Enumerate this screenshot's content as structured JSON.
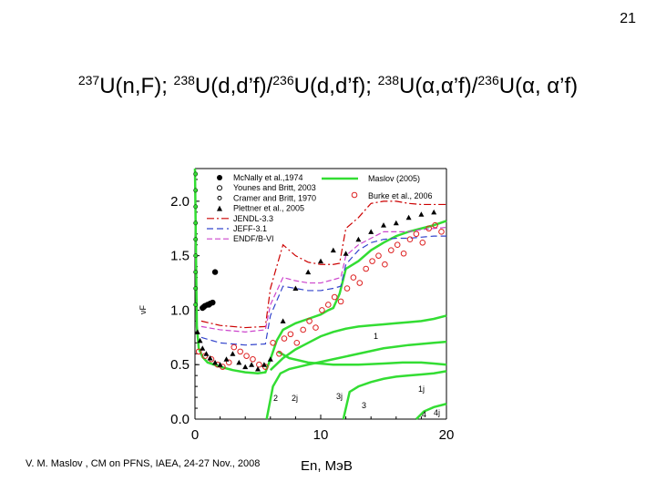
{
  "page_number": "21",
  "title_parts": [
    {
      "sup": "237",
      "text": "U(n,F); "
    },
    {
      "sup": "238",
      "text": "U(d,d’f)/"
    },
    {
      "sup": "236",
      "text": "U(d,d’f); "
    },
    {
      "sup": "238",
      "text": "U(α,α’f)/"
    },
    {
      "sup": "236",
      "text": "U(α, α’f)"
    }
  ],
  "footer": "V. M. Maslov ,   CM on PFNS, IAEA, 24-27 Nov., 2008",
  "chart_data": {
    "type": "scatter",
    "xlabel": "En, MэB",
    "ylabel": "νF",
    "xlim": [
      0,
      20
    ],
    "ylim": [
      0,
      2.3
    ],
    "xticks": [
      "0",
      "10",
      "20"
    ],
    "yticks": [
      "0.0",
      "0.5",
      "1.0",
      "1.5",
      "2.0"
    ],
    "legend_position": "top",
    "legend": [
      {
        "label": "McNally et al.,1974",
        "marker": "filled-circle",
        "color": "#000000"
      },
      {
        "label": "Younes and Britt, 2003",
        "marker": "open-circle",
        "color": "#000000"
      },
      {
        "label": "Cramer and Britt, 1970",
        "marker": "small-circle",
        "color": "#000000"
      },
      {
        "label": "Plettner et al., 2005",
        "marker": "triangle",
        "color": "#000000"
      },
      {
        "label": "JENDL-3.3",
        "line": "dash-dot",
        "color": "#cc0000"
      },
      {
        "label": "JEFF-3.1",
        "line": "dashed",
        "color": "#3344cc"
      },
      {
        "label": "ENDF/B-VI",
        "line": "dashed",
        "color": "#cc44cc"
      },
      {
        "label": "Maslov (2005)",
        "line": "solid",
        "color": "#33dd33"
      },
      {
        "label": "Burke et al., 2006",
        "marker": "open-circle",
        "color": "#dd2222"
      }
    ],
    "curve_labels": [
      "1",
      "1j",
      "2",
      "2j",
      "3",
      "3j",
      "4",
      "4j"
    ],
    "series": [
      {
        "name": "Maslov (2005)",
        "color": "#33dd33",
        "x": [
          0,
          0.15,
          0.3,
          0.6,
          1,
          2,
          3,
          4,
          5,
          5.6,
          6,
          6.5,
          7,
          8,
          9,
          10,
          10.6,
          11,
          11.5,
          12,
          13,
          14,
          15,
          16,
          17,
          18,
          19,
          20
        ],
        "y": [
          2.3,
          0.85,
          0.65,
          0.57,
          0.52,
          0.48,
          0.45,
          0.43,
          0.42,
          0.43,
          0.55,
          0.72,
          0.82,
          0.88,
          0.92,
          0.96,
          1.0,
          1.02,
          1.15,
          1.38,
          1.45,
          1.55,
          1.62,
          1.68,
          1.72,
          1.75,
          1.78,
          1.82
        ]
      },
      {
        "name": "1",
        "color": "#33dd33",
        "x": [
          6,
          7,
          8,
          9,
          10,
          11,
          12,
          13,
          14,
          15,
          16,
          17,
          18,
          19,
          20
        ],
        "y": [
          0.45,
          0.56,
          0.64,
          0.7,
          0.76,
          0.8,
          0.83,
          0.85,
          0.86,
          0.87,
          0.88,
          0.89,
          0.9,
          0.92,
          0.95
        ]
      },
      {
        "name": "1j",
        "color": "#33dd33",
        "x": [
          6.6,
          7.5,
          9,
          11,
          13,
          15,
          16.5,
          18,
          19,
          20
        ],
        "y": [
          0.62,
          0.56,
          0.52,
          0.5,
          0.5,
          0.51,
          0.52,
          0.52,
          0.51,
          0.5
        ]
      },
      {
        "name": "2",
        "color": "#33dd33",
        "x": [
          5.7,
          6.2,
          6.8,
          7.5,
          9,
          11,
          13,
          15,
          17,
          19,
          20
        ],
        "y": [
          0.0,
          0.3,
          0.42,
          0.46,
          0.5,
          0.55,
          0.6,
          0.65,
          0.68,
          0.7,
          0.71
        ]
      },
      {
        "name": "3",
        "color": "#33dd33",
        "x": [
          11.8,
          12.3,
          13,
          14,
          15,
          16,
          17,
          18,
          19,
          20
        ],
        "y": [
          0.0,
          0.25,
          0.3,
          0.34,
          0.37,
          0.39,
          0.4,
          0.41,
          0.42,
          0.44
        ]
      },
      {
        "name": "4",
        "color": "#33dd33",
        "x": [
          17.6,
          18.2,
          19,
          20
        ],
        "y": [
          0.0,
          0.07,
          0.11,
          0.14
        ]
      },
      {
        "name": "JENDL-3.3",
        "color": "#cc0000",
        "x": [
          0.5,
          2,
          4,
          5.6,
          6,
          7,
          8,
          9,
          10,
          11,
          11.5,
          12,
          13,
          14,
          15,
          16,
          17,
          18,
          19,
          20
        ],
        "y": [
          0.9,
          0.86,
          0.84,
          0.85,
          1.2,
          1.6,
          1.5,
          1.44,
          1.42,
          1.42,
          1.43,
          1.75,
          1.85,
          1.98,
          2.0,
          2.0,
          1.98,
          1.97,
          1.97,
          1.97
        ]
      },
      {
        "name": "JEFF-3.1",
        "color": "#3344cc",
        "x": [
          0.5,
          2,
          4,
          5.6,
          6,
          7,
          8,
          9,
          10,
          11,
          11.6,
          12,
          13,
          14,
          15,
          16,
          17,
          18,
          19,
          20
        ],
        "y": [
          0.75,
          0.7,
          0.68,
          0.69,
          0.95,
          1.22,
          1.2,
          1.18,
          1.18,
          1.2,
          1.22,
          1.42,
          1.55,
          1.62,
          1.65,
          1.66,
          1.66,
          1.67,
          1.68,
          1.68
        ]
      },
      {
        "name": "ENDF/B-VI",
        "color": "#cc44cc",
        "x": [
          0.5,
          2,
          4,
          5.6,
          6,
          7,
          8,
          9,
          10,
          11,
          11.6,
          12,
          13,
          14,
          15,
          16,
          17,
          18,
          19,
          20
        ],
        "y": [
          0.85,
          0.82,
          0.8,
          0.82,
          1.05,
          1.3,
          1.27,
          1.25,
          1.25,
          1.28,
          1.3,
          1.5,
          1.6,
          1.66,
          1.72,
          1.72,
          1.72,
          1.74,
          1.75,
          1.76
        ]
      },
      {
        "name": "Burke et al., 2006",
        "color": "#dd2222",
        "marker": "open-circle",
        "x": [
          0.3,
          0.8,
          1.3,
          1.8,
          2.2,
          2.7,
          3.1,
          3.6,
          4.1,
          4.6,
          5.1,
          5.6,
          6.2,
          6.7,
          7.1,
          7.6,
          8.1,
          8.6,
          9.1,
          9.6,
          10.1,
          10.6,
          11.1,
          11.6,
          12.1,
          12.6,
          13.1,
          13.6,
          14.1,
          14.6,
          15.1,
          15.6,
          16.1,
          16.6,
          17.1,
          17.6,
          18.1,
          18.6,
          19.1,
          19.6
        ],
        "y": [
          0.62,
          0.58,
          0.55,
          0.5,
          0.48,
          0.52,
          0.66,
          0.62,
          0.58,
          0.55,
          0.5,
          0.48,
          0.7,
          0.6,
          0.74,
          0.78,
          0.7,
          0.82,
          0.9,
          0.84,
          1.0,
          1.05,
          1.12,
          1.08,
          1.2,
          1.3,
          1.25,
          1.38,
          1.45,
          1.5,
          1.42,
          1.55,
          1.6,
          1.52,
          1.65,
          1.7,
          1.62,
          1.75,
          1.78,
          1.72
        ]
      },
      {
        "name": "McNally et al.,1974",
        "color": "#000000",
        "marker": "filled-circle",
        "x": [
          0.6,
          0.7,
          0.8,
          1.0,
          1.1,
          1.2,
          1.4,
          1.6
        ],
        "y": [
          1.02,
          1.03,
          1.04,
          1.05,
          1.05,
          1.06,
          1.07,
          1.35
        ]
      },
      {
        "name": "Plettner et al., 2005",
        "color": "#000000",
        "marker": "triangle",
        "x": [
          0.2,
          0.4,
          0.6,
          0.9,
          1.2,
          1.6,
          2.0,
          2.5,
          3.0,
          3.5,
          4.0,
          4.5,
          5.0,
          5.5,
          6.0,
          7.0,
          8.0,
          9.0,
          10.0,
          11.0,
          12.0,
          13.0,
          14.0,
          15.0,
          16.0,
          17.0,
          18.0,
          19.0
        ],
        "y": [
          0.8,
          0.72,
          0.65,
          0.6,
          0.56,
          0.52,
          0.5,
          0.55,
          0.6,
          0.52,
          0.48,
          0.5,
          0.46,
          0.5,
          0.55,
          0.9,
          1.2,
          1.35,
          1.45,
          1.55,
          1.52,
          1.65,
          1.72,
          1.78,
          1.8,
          1.85,
          1.88,
          1.9
        ]
      },
      {
        "name": "Cramer and Britt, 1970",
        "color": "#000000",
        "marker": "small-circle",
        "x": [
          0.05,
          0.05,
          0.05,
          0.05,
          0.05,
          0.05,
          0.05,
          0.05,
          0.05
        ],
        "y": [
          2.25,
          2.1,
          1.95,
          1.8,
          1.65,
          1.5,
          1.35,
          1.2,
          1.05
        ]
      }
    ]
  }
}
